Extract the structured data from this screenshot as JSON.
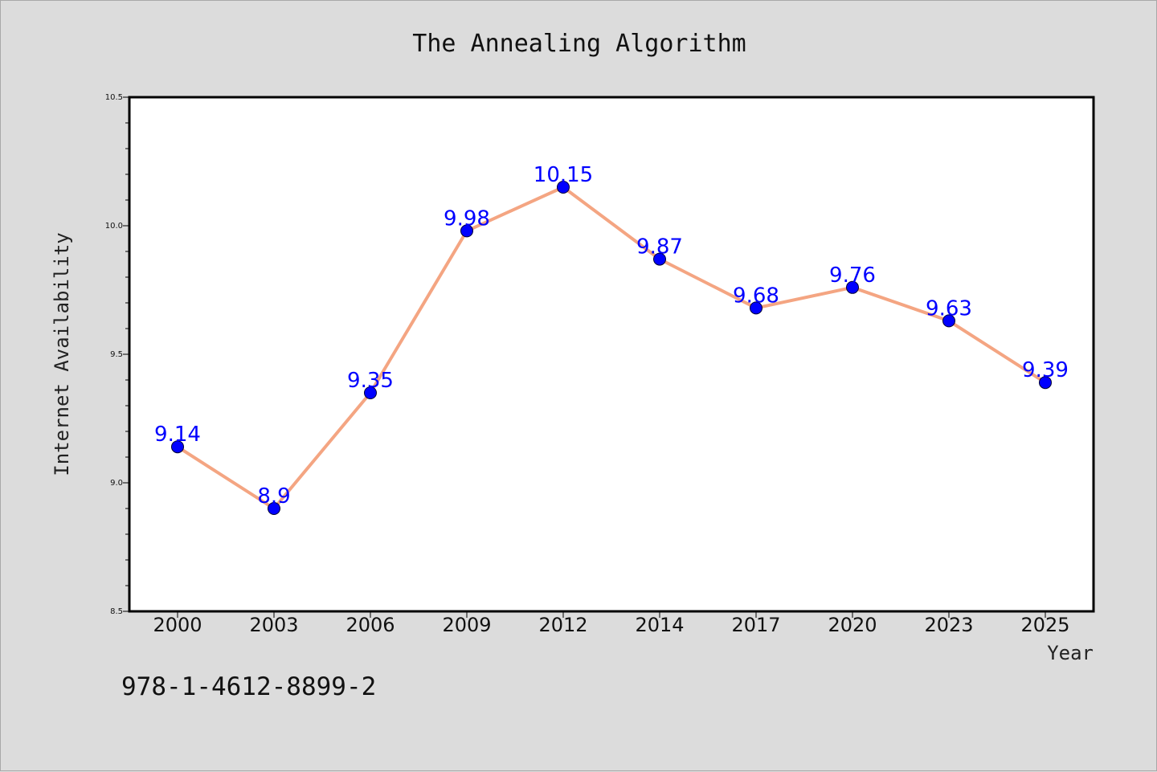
{
  "chart_data": {
    "type": "line",
    "title": "The Annealing Algorithm",
    "xlabel": "Year",
    "ylabel": "Internet Availability",
    "categories": [
      "2000",
      "2003",
      "2006",
      "2009",
      "2012",
      "2014",
      "2017",
      "2020",
      "2023",
      "2025"
    ],
    "series": [
      {
        "values": [
          9.14,
          8.9,
          9.35,
          9.98,
          10.15,
          9.87,
          9.68,
          9.76,
          9.63,
          9.39
        ],
        "line_color": "#f4a582",
        "marker_color": "#0000ff"
      }
    ],
    "data_labels": [
      "9.14",
      "8.9",
      "9.35",
      "9.98",
      "10.15",
      "9.87",
      "9.68",
      "9.76",
      "9.63",
      "9.39"
    ],
    "ylim": [
      8.5,
      10.5
    ],
    "yticks": [
      "8.5",
      "9.0",
      "9.5",
      "10.0",
      "10.5"
    ],
    "grid": false,
    "data_label_color": "#0000ff",
    "background_color": "#dcdcdc",
    "plot_background": "#ffffff"
  },
  "footer": {
    "isbn": "978-1-4612-8899-2"
  }
}
